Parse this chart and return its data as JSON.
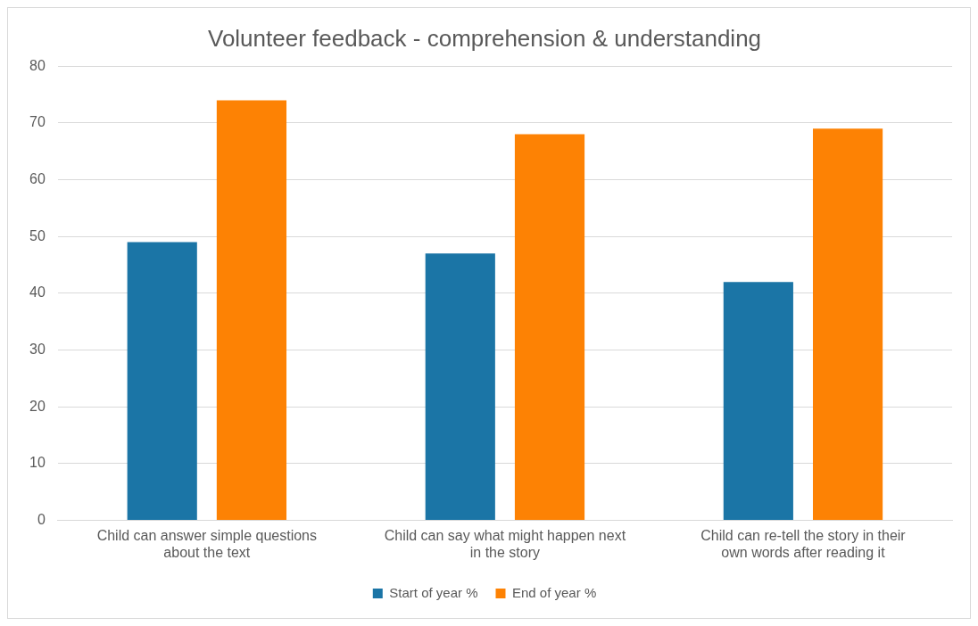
{
  "chart_data": {
    "type": "bar",
    "title": "Volunteer feedback - comprehension & understanding",
    "categories": [
      "Child can answer simple questions about the text",
      "Child can say what might happen next in the story",
      "Child can re-tell the story in their own words after reading it"
    ],
    "series": [
      {
        "name": "Start of year %",
        "color": "#1b75a6",
        "values": [
          49,
          47,
          42
        ]
      },
      {
        "name": "End of year %",
        "color": "#fd8204",
        "values": [
          74,
          68,
          69
        ]
      }
    ],
    "ylim": [
      0,
      80
    ],
    "yticks": [
      0,
      10,
      20,
      30,
      40,
      50,
      60,
      70,
      80
    ],
    "grid": "y",
    "legend": "bottom"
  }
}
